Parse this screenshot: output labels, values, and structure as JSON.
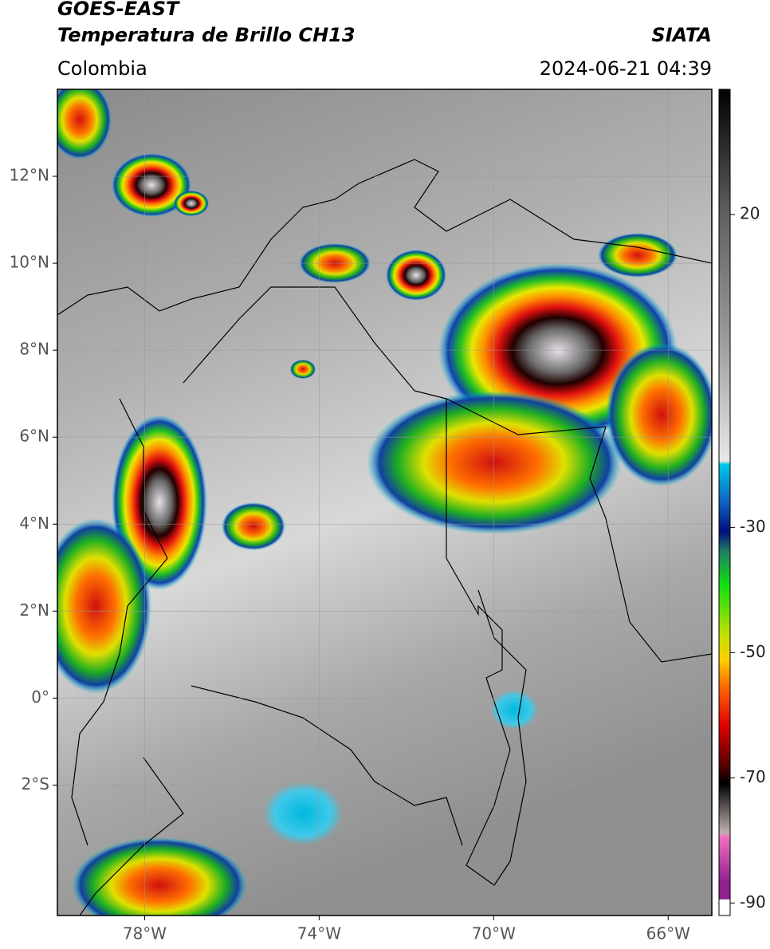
{
  "header": {
    "satellite": "GOES-EAST",
    "product": "Temperatura de Brillo CH13",
    "agency": "SIATA",
    "region": "Colombia",
    "timestamp": "2024-06-21 04:39"
  },
  "map": {
    "xlim": [
      -80,
      -65
    ],
    "ylim": [
      -5,
      14
    ],
    "xticks": [
      {
        "value": -78,
        "label": "78°W"
      },
      {
        "value": -74,
        "label": "74°W"
      },
      {
        "value": -70,
        "label": "70°W"
      },
      {
        "value": -66,
        "label": "66°W"
      }
    ],
    "yticks": [
      {
        "value": 12,
        "label": "12°N"
      },
      {
        "value": 10,
        "label": "10°N"
      },
      {
        "value": 8,
        "label": "8°N"
      },
      {
        "value": 6,
        "label": "6°N"
      },
      {
        "value": 4,
        "label": "4°N"
      },
      {
        "value": 2,
        "label": "2°N"
      },
      {
        "value": 0,
        "label": "0°"
      },
      {
        "value": -2,
        "label": "2°S"
      }
    ],
    "grid": true
  },
  "colorbar": {
    "lim": [
      -92,
      40
    ],
    "ticks": [
      20,
      -30,
      -50,
      -70,
      -90
    ]
  }
}
